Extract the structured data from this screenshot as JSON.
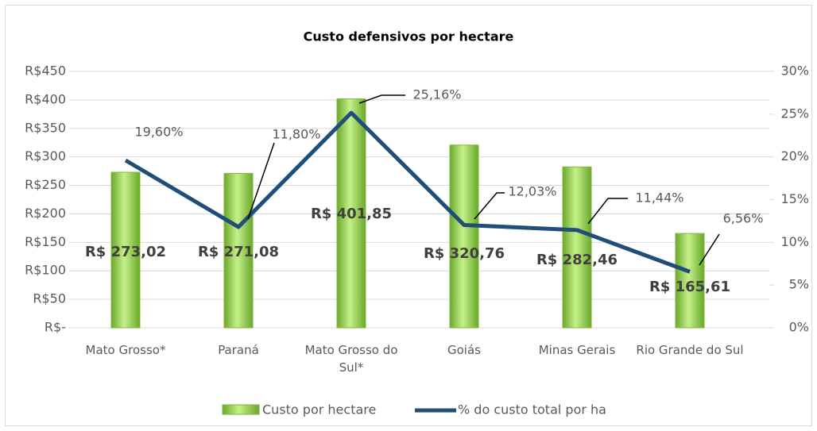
{
  "chart_data": {
    "type": "bar_line",
    "title": "Custo defensivos por hectare",
    "categories": [
      "Mato Grosso*",
      "Paraná",
      "Mato Grosso do Sul*",
      "Goiás",
      "Minas Gerais",
      "Rio Grande do Sul"
    ],
    "series": [
      {
        "name": "Custo por hectare",
        "type": "bar",
        "color": "#92d050",
        "values": [
          273.02,
          271.08,
          401.85,
          320.76,
          282.46,
          165.61
        ],
        "value_labels": [
          "R$ 273,02",
          "R$ 271,08",
          "R$ 401,85",
          "R$ 320,76",
          "R$ 282,46",
          "R$ 165,61"
        ]
      },
      {
        "name": "% do custo total por ha",
        "type": "line",
        "axis": "y2",
        "color": "#1f4e79",
        "values": [
          19.6,
          11.8,
          25.16,
          12.03,
          11.44,
          6.56
        ],
        "value_labels": [
          "19,60%",
          "11,80%",
          "25,16%",
          "12,03%",
          "11,44%",
          "6,56%"
        ]
      }
    ],
    "ylim": [
      0,
      450
    ],
    "yticks": [
      {
        "value": 0,
        "label": "R$-"
      },
      {
        "value": 50,
        "label": "R$50"
      },
      {
        "value": 100,
        "label": "R$100"
      },
      {
        "value": 150,
        "label": "R$150"
      },
      {
        "value": 200,
        "label": "R$200"
      },
      {
        "value": 250,
        "label": "R$250"
      },
      {
        "value": 300,
        "label": "R$300"
      },
      {
        "value": 350,
        "label": "R$350"
      },
      {
        "value": 400,
        "label": "R$400"
      },
      {
        "value": 450,
        "label": "R$450"
      }
    ],
    "y2lim": [
      0,
      30
    ],
    "y2ticks": [
      {
        "value": 0,
        "label": "0%"
      },
      {
        "value": 5,
        "label": "5%"
      },
      {
        "value": 10,
        "label": "10%"
      },
      {
        "value": 15,
        "label": "15%"
      },
      {
        "value": 20,
        "label": "20%"
      },
      {
        "value": 25,
        "label": "25%"
      },
      {
        "value": 30,
        "label": "30%"
      }
    ],
    "grid": true,
    "legend": "bottom"
  }
}
